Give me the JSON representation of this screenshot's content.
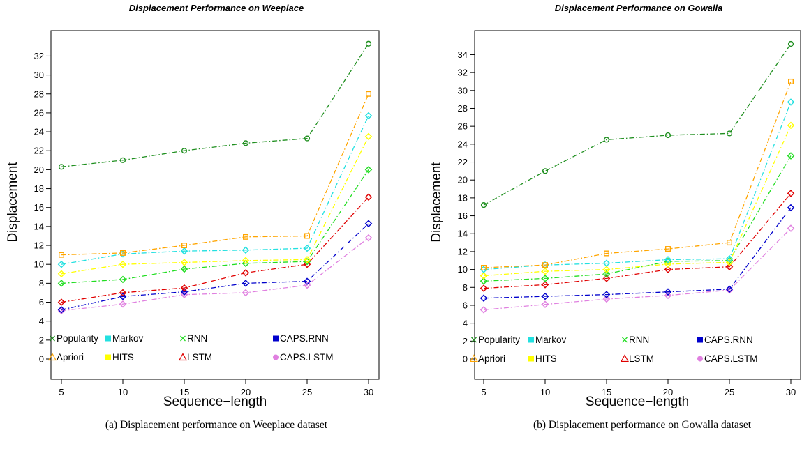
{
  "chart_data": [
    {
      "type": "line",
      "title": "Displacement  Performance on  Weeplace",
      "xlabel": "Sequence−length",
      "ylabel": "Displacement",
      "x": [
        5,
        10,
        15,
        20,
        25,
        30
      ],
      "xticks": [
        "5",
        "10",
        "15",
        "20",
        "25",
        "30"
      ],
      "ylim": [
        -1,
        35
      ],
      "yticks": [
        "0",
        "2",
        "4",
        "6",
        "8",
        "10",
        "12",
        "14",
        "16",
        "18",
        "20",
        "22",
        "24",
        "26",
        "28",
        "30",
        "32"
      ],
      "grid": false,
      "legend_position": "bottom",
      "caption": "(a) Displacement performance on Weeplace dataset",
      "series": [
        {
          "name": "Popularity",
          "color": "#1f8f1f",
          "marker": "circle",
          "values": [
            20.3,
            21.0,
            22.0,
            22.8,
            23.3,
            33.3
          ]
        },
        {
          "name": "Apriori",
          "color": "#ffa500",
          "marker": "square",
          "values": [
            11.0,
            11.2,
            12.0,
            12.9,
            13.0,
            28.0
          ]
        },
        {
          "name": "Markov",
          "color": "#22e0e0",
          "marker": "diamond",
          "values": [
            10.0,
            11.1,
            11.4,
            11.5,
            11.7,
            25.7
          ]
        },
        {
          "name": "HITS",
          "color": "#ffff00",
          "marker": "diamond",
          "values": [
            9.0,
            10.0,
            10.2,
            10.4,
            10.5,
            23.5
          ]
        },
        {
          "name": "RNN",
          "color": "#22dd22",
          "marker": "diamond",
          "values": [
            8.0,
            8.4,
            9.5,
            10.1,
            10.3,
            20.0
          ]
        },
        {
          "name": "LSTM",
          "color": "#e00000",
          "marker": "diamond",
          "values": [
            6.0,
            7.0,
            7.5,
            9.1,
            10.0,
            17.1
          ]
        },
        {
          "name": "CAPS.RNN",
          "color": "#0000cc",
          "marker": "diamond",
          "values": [
            5.2,
            6.6,
            7.1,
            8.0,
            8.2,
            14.3
          ]
        },
        {
          "name": "CAPS.LSTM",
          "color": "#e080e0",
          "marker": "diamond",
          "values": [
            5.1,
            5.8,
            6.8,
            7.0,
            7.8,
            12.8
          ]
        }
      ]
    },
    {
      "type": "line",
      "title": "Displacement  Performance on  Gowalla",
      "xlabel": "Sequence−length",
      "ylabel": "Displacement",
      "x": [
        5,
        10,
        15,
        20,
        25,
        30
      ],
      "xticks": [
        "5",
        "10",
        "15",
        "20",
        "25",
        "30"
      ],
      "ylim": [
        -2,
        37
      ],
      "yticks": [
        "0",
        "2",
        "4",
        "6",
        "8",
        "10",
        "12",
        "14",
        "16",
        "18",
        "20",
        "22",
        "24",
        "26",
        "28",
        "30",
        "32",
        "34"
      ],
      "grid": false,
      "legend_position": "bottom",
      "caption": "(b) Displacement performance on Gowalla dataset",
      "series": [
        {
          "name": "Popularity",
          "color": "#1f8f1f",
          "marker": "circle",
          "values": [
            17.2,
            21.0,
            24.5,
            25.0,
            25.2,
            35.2
          ]
        },
        {
          "name": "Apriori",
          "color": "#ffa500",
          "marker": "square",
          "values": [
            10.2,
            10.5,
            11.8,
            12.3,
            13.0,
            31.0
          ]
        },
        {
          "name": "Markov",
          "color": "#22e0e0",
          "marker": "diamond",
          "values": [
            10.0,
            10.5,
            10.7,
            11.1,
            11.2,
            28.7
          ]
        },
        {
          "name": "HITS",
          "color": "#ffff00",
          "marker": "diamond",
          "values": [
            9.3,
            9.8,
            10.0,
            10.6,
            10.8,
            26.1
          ]
        },
        {
          "name": "RNN",
          "color": "#22dd22",
          "marker": "diamond",
          "values": [
            8.7,
            9.0,
            9.5,
            10.9,
            11.0,
            22.7
          ]
        },
        {
          "name": "LSTM",
          "color": "#e00000",
          "marker": "diamond",
          "values": [
            7.9,
            8.3,
            9.0,
            10.0,
            10.3,
            18.5
          ]
        },
        {
          "name": "CAPS.RNN",
          "color": "#0000cc",
          "marker": "diamond",
          "values": [
            6.8,
            7.0,
            7.2,
            7.5,
            7.8,
            16.9
          ]
        },
        {
          "name": "CAPS.LSTM",
          "color": "#e080e0",
          "marker": "diamond",
          "values": [
            5.5,
            6.1,
            6.7,
            7.1,
            7.7,
            14.6
          ]
        }
      ]
    }
  ],
  "legend_rows": [
    [
      {
        "name": "Popularity",
        "symbol": "cross",
        "color": "#1f8f1f"
      },
      {
        "name": "Markov",
        "symbol": "filled-square",
        "color": "#22e0e0"
      },
      {
        "name": "RNN",
        "symbol": "cross",
        "color": "#22dd22"
      },
      {
        "name": "CAPS.RNN",
        "symbol": "filled-square",
        "color": "#0000cc"
      }
    ],
    [
      {
        "name": "Apriori",
        "symbol": "triangle",
        "color": "#ffa500"
      },
      {
        "name": "HITS",
        "symbol": "filled-square",
        "color": "#ffff00"
      },
      {
        "name": "LSTM",
        "symbol": "triangle",
        "color": "#e00000"
      },
      {
        "name": "CAPS.LSTM",
        "symbol": "filled-circle",
        "color": "#e080e0"
      }
    ]
  ]
}
